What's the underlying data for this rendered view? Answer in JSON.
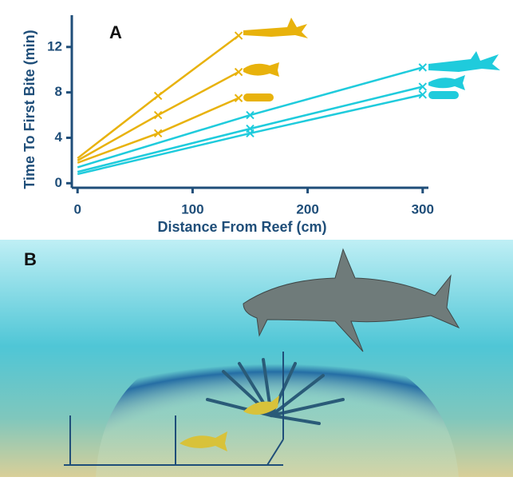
{
  "chart_data": {
    "type": "line",
    "panel_label": "A",
    "x_label": "Distance From Reef (cm)",
    "y_label": "Time To First Bite (min)",
    "xlim": [
      -5,
      305
    ],
    "ylim": [
      -0.4,
      14.8
    ],
    "xticks": [
      0,
      100,
      200,
      300
    ],
    "yticks": [
      0,
      4,
      8,
      12
    ],
    "series": [
      {
        "color": "#e8b20c",
        "x": [
          0,
          70,
          140
        ],
        "values": [
          2.2,
          7.7,
          13.0
        ]
      },
      {
        "color": "#e8b20c",
        "x": [
          0,
          70,
          140
        ],
        "values": [
          2.0,
          6.0,
          9.8
        ]
      },
      {
        "color": "#e8b20c",
        "x": [
          0,
          70,
          140
        ],
        "values": [
          1.8,
          4.4,
          7.5
        ]
      },
      {
        "color": "#1fcbdc",
        "x": [
          0,
          150,
          300
        ],
        "values": [
          1.4,
          6.0,
          10.2
        ]
      },
      {
        "color": "#1fcbdc",
        "x": [
          0,
          150,
          300
        ],
        "values": [
          1.0,
          4.8,
          8.5
        ]
      },
      {
        "color": "#1fcbdc",
        "x": [
          0,
          150,
          300
        ],
        "values": [
          0.8,
          4.4,
          7.8
        ]
      }
    ]
  },
  "panel_b": {
    "label": "B"
  }
}
